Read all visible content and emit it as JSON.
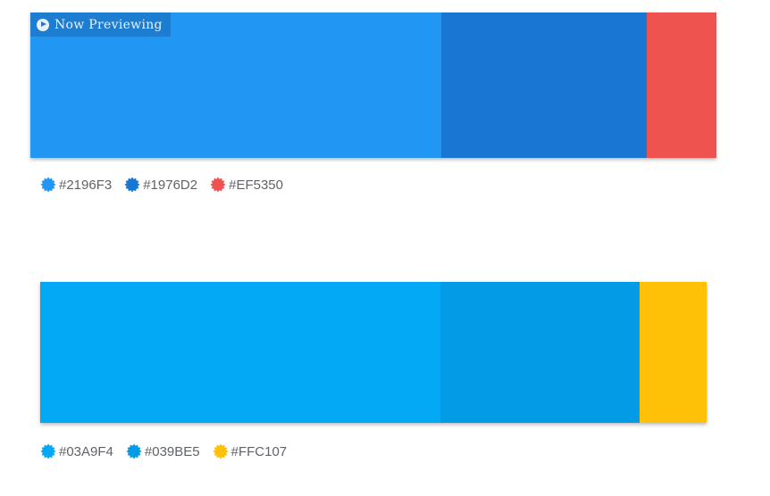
{
  "banner": {
    "label": "Now Previewing",
    "icon": "play-circle-icon"
  },
  "palettes": [
    {
      "colors": [
        "#2196F3",
        "#1976D2",
        "#EF5350"
      ],
      "labels": [
        "#2196F3",
        "#1976D2",
        "#EF5350"
      ]
    },
    {
      "colors": [
        "#03A9F4",
        "#039BE5",
        "#FFC107"
      ],
      "labels": [
        "#03A9F4",
        "#039BE5",
        "#FFC107"
      ]
    }
  ]
}
